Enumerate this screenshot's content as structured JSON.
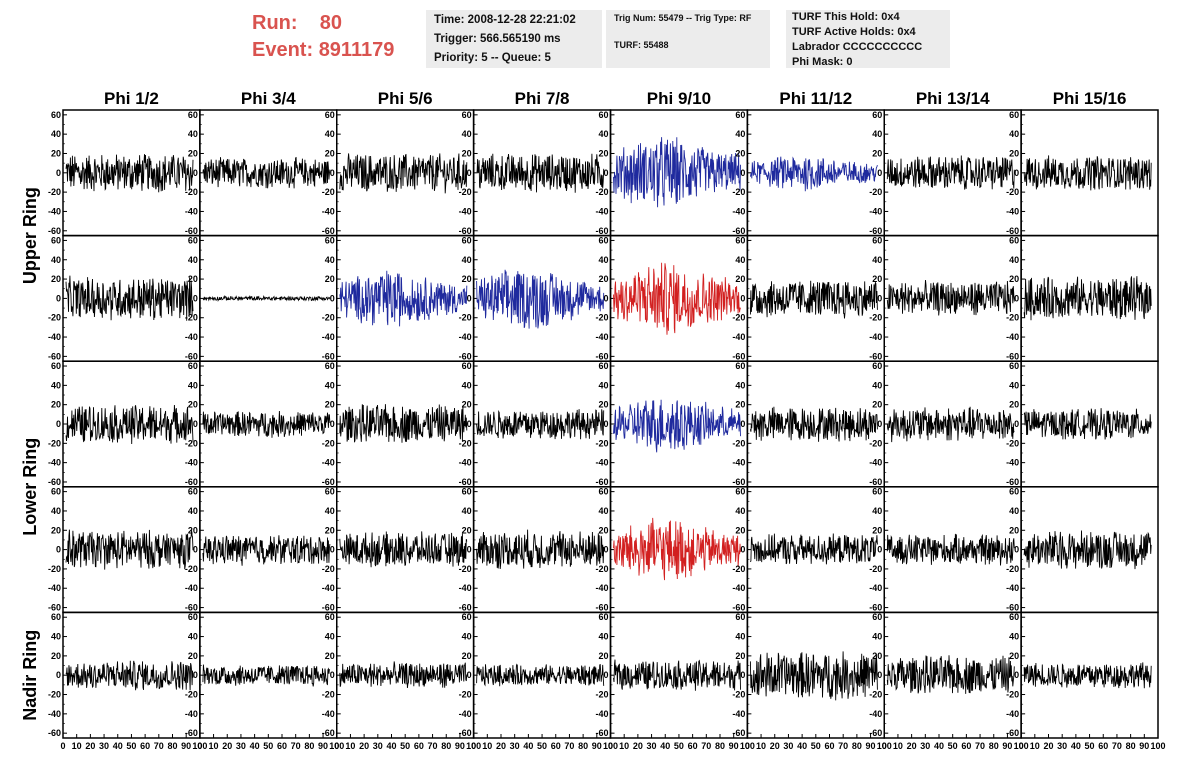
{
  "header": {
    "run_label": "Run:",
    "run_value": "80",
    "event_label": "Event:",
    "event_value": "8911179",
    "time": "Time: 2008-12-28 22:21:02",
    "trigger": "Trigger: 566.565190 ms",
    "priority": "Priority: 5 -- Queue: 5",
    "trig_num": "Trig Num: 55479 -- Trig Type: RF",
    "turf": "TURF: 55488",
    "turf_hold": "TURF This Hold: 0x4",
    "turf_active": "TURF Active Holds: 0x4",
    "labrador": "Labrador CCCCCCCCCC",
    "phi_mask": "Phi Mask: 0"
  },
  "colors": {
    "black": "#000000",
    "blue": "#1f2a9e",
    "red": "#d22020",
    "header_red": "#d9534f",
    "box_bg": "#ececec"
  },
  "chart_data": {
    "type": "line",
    "columns": [
      "Phi 1/2",
      "Phi 3/4",
      "Phi 5/6",
      "Phi 7/8",
      "Phi 9/10",
      "Phi 11/12",
      "Phi 13/14",
      "Phi 15/16"
    ],
    "row_labels": [
      "Upper Ring",
      "Lower Ring",
      "Nadir Ring"
    ],
    "rows": 5,
    "ylim": [
      -65,
      65
    ],
    "xlim": [
      0,
      100
    ],
    "yticks": [
      -60,
      -40,
      -20,
      0,
      20,
      40,
      60
    ],
    "xticks": [
      0,
      10,
      20,
      30,
      40,
      50,
      60,
      70,
      80,
      90,
      100
    ],
    "xtick_labels": [
      "0",
      "10",
      "20",
      "30",
      "40",
      "50",
      "60",
      "70",
      "80",
      "90",
      "100"
    ],
    "trace_colors": [
      [
        "black",
        "black",
        "black",
        "black",
        "blue",
        "blue",
        "black",
        "black"
      ],
      [
        "black",
        "black",
        "blue",
        "blue",
        "red",
        "black",
        "black",
        "black"
      ],
      [
        "black",
        "black",
        "black",
        "black",
        "blue",
        "black",
        "black",
        "black"
      ],
      [
        "black",
        "black",
        "black",
        "black",
        "red",
        "black",
        "black",
        "black"
      ],
      [
        "black",
        "black",
        "black",
        "black",
        "black",
        "black",
        "black",
        "black"
      ]
    ],
    "amplitudes": [
      [
        18,
        14,
        18,
        18,
        28,
        14,
        16,
        16
      ],
      [
        20,
        2,
        22,
        24,
        28,
        18,
        16,
        20
      ],
      [
        18,
        12,
        18,
        14,
        22,
        16,
        16,
        14
      ],
      [
        18,
        14,
        16,
        18,
        24,
        14,
        14,
        18
      ],
      [
        14,
        10,
        12,
        10,
        14,
        22,
        18,
        12
      ]
    ]
  }
}
